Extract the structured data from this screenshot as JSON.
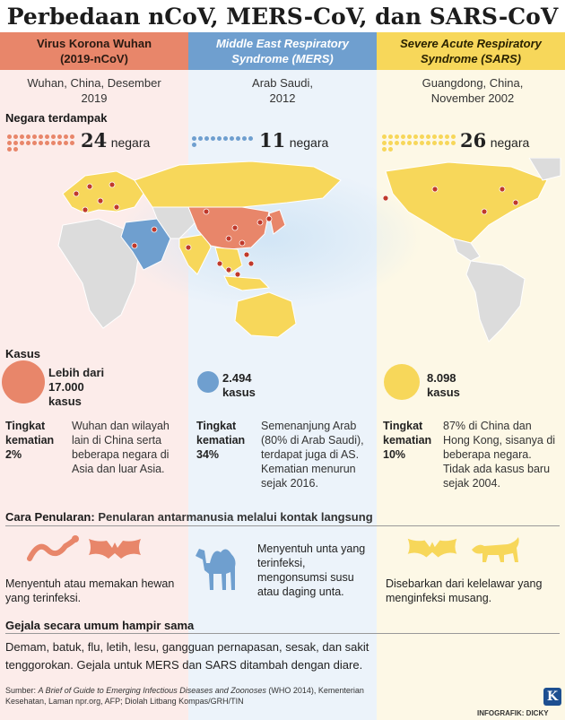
{
  "title": "Perbedaan nCoV, MERS-CoV, dan SARS-CoV",
  "colors": {
    "ncov": "#e8866a",
    "mers": "#6f9fcf",
    "sars": "#f7d75a",
    "ncov_bg": "#fcecea",
    "mers_bg": "#ecf3fa",
    "sars_bg": "#fdf8e6"
  },
  "columns": [
    {
      "header": "Virus Korona Wuhan (2019-nCoV)",
      "origin": "Wuhan, China, Desember 2019",
      "countries": "24",
      "country_unit": "negara",
      "cases": "Lebih dari 17.000 kasus",
      "mortality": "2%",
      "mortality_note": "Wuhan dan wilayah lain di China serta beberapa negara di Asia dan luar Asia.",
      "transmission": "Menyentuh atau memakan hewan yang terinfeksi.",
      "animals": [
        "snake-icon",
        "bat-icon"
      ]
    },
    {
      "header": "Middle East Respiratory Syndrome (MERS)",
      "origin": "Arab Saudi, 2012",
      "countries": "11",
      "country_unit": "negara",
      "cases": "2.494 kasus",
      "mortality": "34%",
      "mortality_note": "Semenanjung Arab (80% di Arab Saudi), terdapat juga di AS. Kematian menurun sejak 2016.",
      "transmission": "Menyentuh unta yang terinfeksi, mengonsumsi susu atau daging unta.",
      "animals": [
        "camel-icon"
      ]
    },
    {
      "header": "Severe Acute Respiratory Syndrome (SARS)",
      "origin": "Guangdong, China, November 2002",
      "countries": "26",
      "country_unit": "negara",
      "cases": "8.098 kasus",
      "mortality": "10%",
      "mortality_note": "87% di China dan Hong Kong, sisanya di beberapa negara. Tidak ada kasus baru sejak 2004.",
      "transmission": "Disebarkan dari kelelawar yang menginfeksi musang.",
      "animals": [
        "bat-icon",
        "civet-icon"
      ]
    }
  ],
  "labels": {
    "countries_section": "Negara terdampak",
    "cases_section": "Kasus",
    "mortality_label": "Tingkat kematian",
    "transmission_section": "Cara Penularan:",
    "transmission_summary": "Penularan antarmanusia melalui kontak langsung",
    "symptoms_section": "Gejala secara umum hampir sama",
    "symptoms_text": "Demam, batuk, flu, letih, lesu, gangguan pernapasan, sesak, dan sakit tenggorokan. Gejala untuk MERS dan SARS ditambah dengan diare.",
    "source_prefix": "Sumber: ",
    "source_title": "A Brief of Guide to Emerging Infectious Diseases and Zoonoses",
    "source_rest": " (WHO 2014), Kementerian Kesehatan, Laman npr.org, AFP; Diolah Litbang Kompas/GRH/TIN",
    "logo_letter": "K",
    "credit": "INFOGRAFIK: DICKY"
  }
}
